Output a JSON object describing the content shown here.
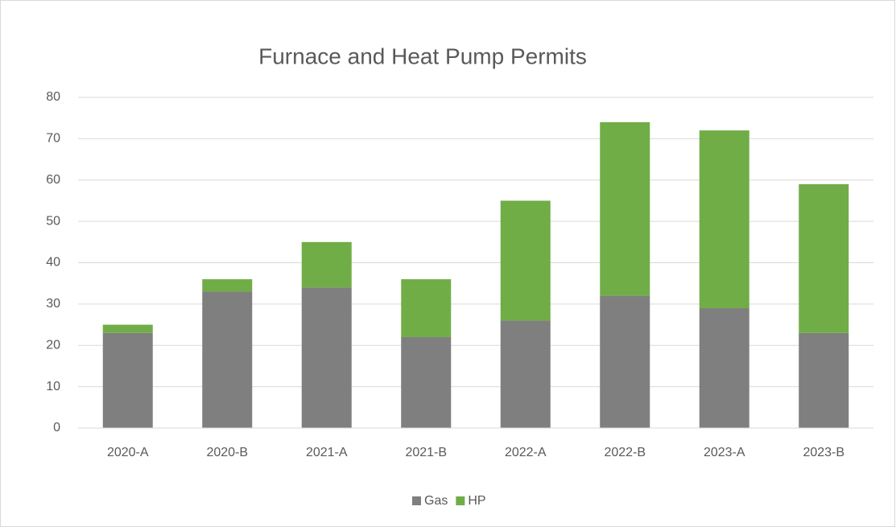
{
  "chart_data": {
    "type": "stacked-bar",
    "title": "Furnace and Heat Pump Permits",
    "categories": [
      "2020-A",
      "2020-B",
      "2021-A",
      "2021-B",
      "2022-A",
      "2022-B",
      "2023-A",
      "2023-B"
    ],
    "series": [
      {
        "name": "Gas",
        "color": "#7f7f7f",
        "values": [
          23,
          33,
          34,
          22,
          26,
          32,
          29,
          23
        ]
      },
      {
        "name": "HP",
        "color": "#70ad47",
        "values": [
          2,
          3,
          11,
          14,
          29,
          42,
          43,
          36
        ]
      }
    ],
    "ylim": [
      0,
      80
    ],
    "yticks": [
      0,
      10,
      20,
      30,
      40,
      50,
      60,
      70,
      80
    ],
    "grid": true,
    "legend": "bottom"
  }
}
